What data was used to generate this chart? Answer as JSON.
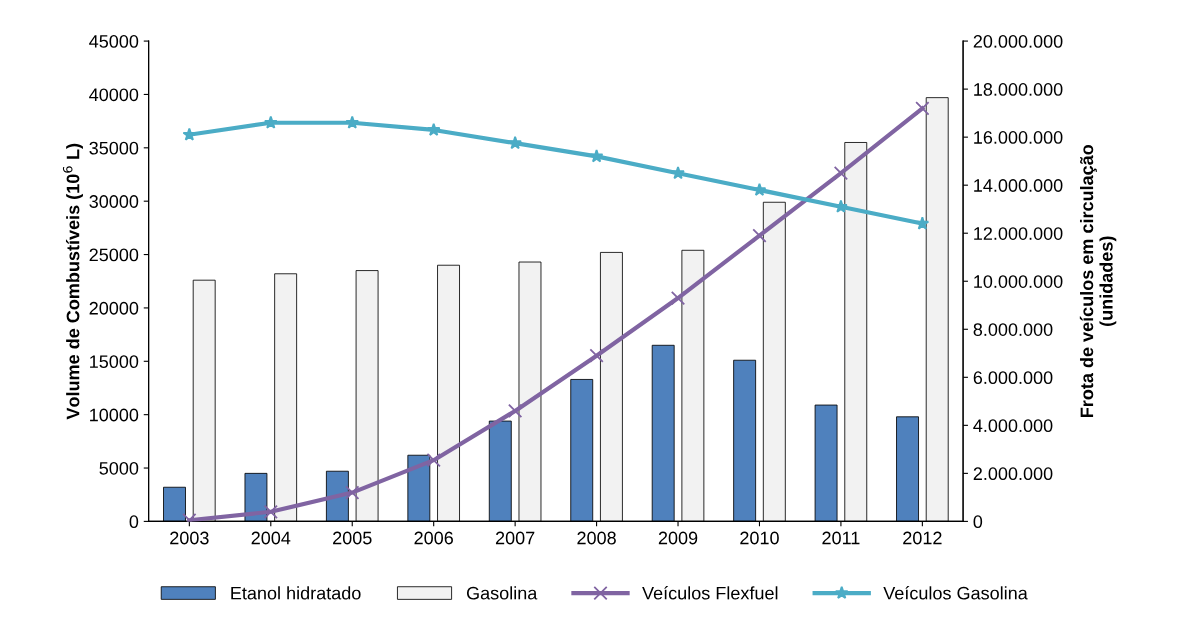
{
  "chart_data": {
    "type": "bar",
    "categories": [
      "2003",
      "2004",
      "2005",
      "2006",
      "2007",
      "2008",
      "2009",
      "2010",
      "2011",
      "2012"
    ],
    "ylabel": "Volume de Combustíveis (10$^{6}$ L)",
    "y2label": "Frota de veículos em circulação\n(unidades)",
    "ylim": [
      0,
      45000
    ],
    "yticks": [
      0,
      5000,
      10000,
      15000,
      20000,
      25000,
      30000,
      35000,
      40000,
      45000
    ],
    "y2lim": [
      0,
      20000000
    ],
    "y2ticks": [
      {
        "value": 0,
        "label": "0"
      },
      {
        "value": 2000000,
        "label": "2.000.000"
      },
      {
        "value": 4000000,
        "label": "4.000.000"
      },
      {
        "value": 6000000,
        "label": "6.000.000"
      },
      {
        "value": 8000000,
        "label": "8.000.000"
      },
      {
        "value": 10000000,
        "label": "10.000.000"
      },
      {
        "value": 12000000,
        "label": "12.000.000"
      },
      {
        "value": 14000000,
        "label": "14.000.000"
      },
      {
        "value": 16000000,
        "label": "16.000.000"
      },
      {
        "value": 18000000,
        "label": "18.000.000"
      },
      {
        "value": 20000000,
        "label": "20.000.000"
      }
    ],
    "grid": false,
    "legend": "bottom",
    "line_style": "solid",
    "series": [
      {
        "name": "Etanol hidratado",
        "color": "#4f81bd",
        "values": [
          3200,
          4500,
          4700,
          6200,
          9400,
          13300,
          16500,
          15100,
          10900,
          9800
        ]
      },
      {
        "name": "Gasolina",
        "color": "#f2f2f2",
        "values": [
          22600,
          23200,
          23500,
          24000,
          24300,
          25200,
          25400,
          29900,
          35500,
          39700
        ]
      },
      {
        "name": "Veículos Flexfuel",
        "type": "line",
        "axis": "y2",
        "marker": "cross",
        "color": "#8064a2",
        "values": [
          50000,
          400000,
          1200000,
          2550000,
          4600000,
          6900000,
          9300000,
          11900000,
          14500000,
          17200000
        ]
      },
      {
        "name": "Veículos Gasolina",
        "type": "line",
        "axis": "y2",
        "marker": "star",
        "color": "#4bacc6",
        "values": [
          16100000,
          16600000,
          16600000,
          16300000,
          15750000,
          15200000,
          14500000,
          13800000,
          13100000,
          12400000
        ]
      }
    ]
  }
}
